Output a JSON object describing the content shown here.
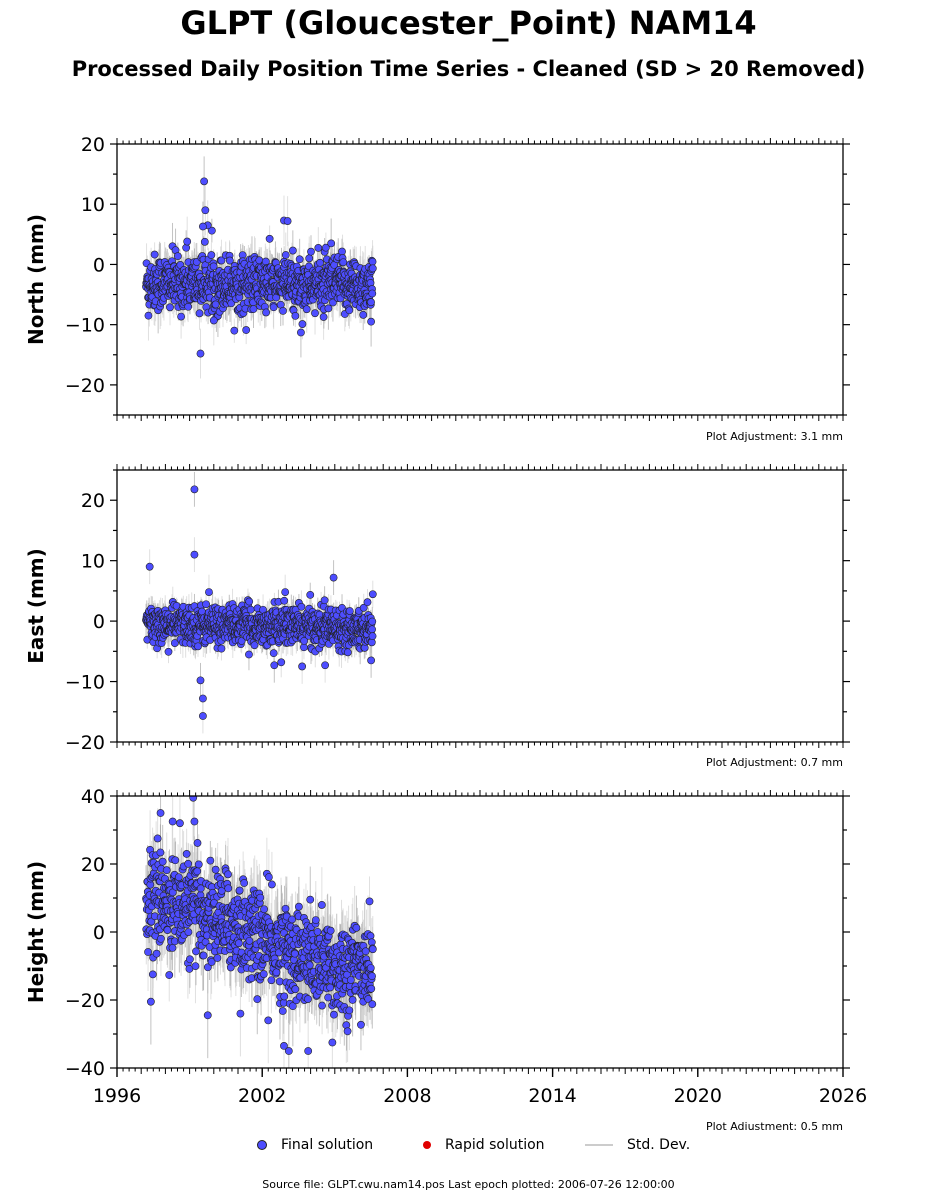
{
  "title": "GLPT (Gloucester_Point) NAM14",
  "subtitle": "Processed Daily Position Time Series - Cleaned (SD > 20 Removed)",
  "legend": {
    "final": "Final solution",
    "rapid": "Rapid solution",
    "std": "Std. Dev."
  },
  "source": "Source file: GLPT.cwu.nam14.pos  Last epoch plotted: 2006-07-26 12:00:00",
  "colors": {
    "final_fill": "#4d4dff",
    "final_edge": "#222222",
    "rapid": "#e00000",
    "std": "#cccccc"
  },
  "chart_data": [
    {
      "type": "scatter",
      "name": "north",
      "ylabel": "North (mm)",
      "xlim": [
        1996,
        2026
      ],
      "ylim": [
        -25,
        20
      ],
      "yticks": [
        20,
        10,
        0,
        -10,
        -20
      ],
      "ytick_labels": [
        "20",
        "10",
        "0",
        "−10",
        "−20"
      ],
      "xticks": [],
      "xtick_labels": [],
      "adjustment": "Plot Adjustment: 3.1 mm",
      "data_range": [
        1997.2,
        2006.57
      ],
      "baseline": [
        [
          1997.2,
          -3.0
        ],
        [
          2006.57,
          -3.5
        ]
      ],
      "spread": 2.3,
      "outliers": [
        [
          1999.6,
          13.8
        ],
        [
          1999.65,
          9.0
        ],
        [
          1999.75,
          6.5
        ],
        [
          1999.55,
          6.3
        ],
        [
          2002.9,
          7.3
        ],
        [
          2003.05,
          7.2
        ],
        [
          2004.85,
          3.5
        ],
        [
          1998.9,
          3.8
        ],
        [
          1999.45,
          -14.8
        ],
        [
          2003.6,
          -11.3
        ],
        [
          1997.3,
          -8.5
        ],
        [
          2000.0,
          -9.3
        ],
        [
          2006.5,
          -9.5
        ]
      ]
    },
    {
      "type": "scatter",
      "name": "east",
      "ylabel": "East (mm)",
      "xlim": [
        1996,
        2026
      ],
      "ylim": [
        -20,
        25
      ],
      "yticks": [
        20,
        10,
        0,
        -10,
        -20
      ],
      "ytick_labels": [
        "20",
        "10",
        "0",
        "−10",
        "−20"
      ],
      "xticks": [],
      "xtick_labels": [],
      "adjustment": "Plot Adjustment: 0.7 mm",
      "data_range": [
        1997.2,
        2006.57
      ],
      "baseline": [
        [
          1997.2,
          -0.5
        ],
        [
          2006.57,
          -1.0
        ]
      ],
      "spread": 1.6,
      "outliers": [
        [
          1999.2,
          21.8
        ],
        [
          1999.2,
          11.0
        ],
        [
          1997.35,
          9.0
        ],
        [
          2004.95,
          7.2
        ],
        [
          1999.8,
          4.8
        ],
        [
          2002.95,
          4.8
        ],
        [
          1999.45,
          -9.8
        ],
        [
          1999.55,
          -12.8
        ],
        [
          1999.55,
          -15.7
        ],
        [
          2002.5,
          -7.3
        ],
        [
          2003.65,
          -7.5
        ],
        [
          2004.6,
          -7.3
        ],
        [
          2006.5,
          -6.5
        ]
      ]
    },
    {
      "type": "scatter",
      "name": "height",
      "ylabel": "Height (mm)",
      "xlim": [
        1996,
        2026
      ],
      "ylim": [
        -40,
        40
      ],
      "yticks": [
        40,
        20,
        0,
        -20,
        -40
      ],
      "ytick_labels": [
        "40",
        "20",
        "0",
        "−20",
        "−40"
      ],
      "xticks": [
        1996,
        2002,
        2008,
        2014,
        2020,
        2026
      ],
      "xtick_labels": [
        "1996",
        "2002",
        "2008",
        "2014",
        "2020",
        "2026"
      ],
      "adjustment": "Plot Adjustment: 0.5 mm",
      "data_range": [
        1997.2,
        2006.57
      ],
      "baseline": [
        [
          1997.2,
          10.0
        ],
        [
          1999.0,
          7.0
        ],
        [
          2001.0,
          2.0
        ],
        [
          2003.0,
          -6.0
        ],
        [
          2005.0,
          -11.0
        ],
        [
          2006.57,
          -10.0
        ]
      ],
      "spread": 7.0,
      "outliers": [
        [
          1999.15,
          39.5
        ],
        [
          1998.3,
          32.5
        ],
        [
          1998.6,
          32.0
        ],
        [
          1997.8,
          35.0
        ],
        [
          1999.2,
          32.5
        ],
        [
          2002.9,
          -33.5
        ],
        [
          2003.1,
          -35.0
        ],
        [
          2003.9,
          -35.0
        ],
        [
          2004.9,
          -32.5
        ],
        [
          1997.4,
          -20.5
        ],
        [
          2001.1,
          -24.0
        ],
        [
          2002.25,
          -26.0
        ],
        [
          1999.75,
          -24.5
        ]
      ]
    }
  ]
}
